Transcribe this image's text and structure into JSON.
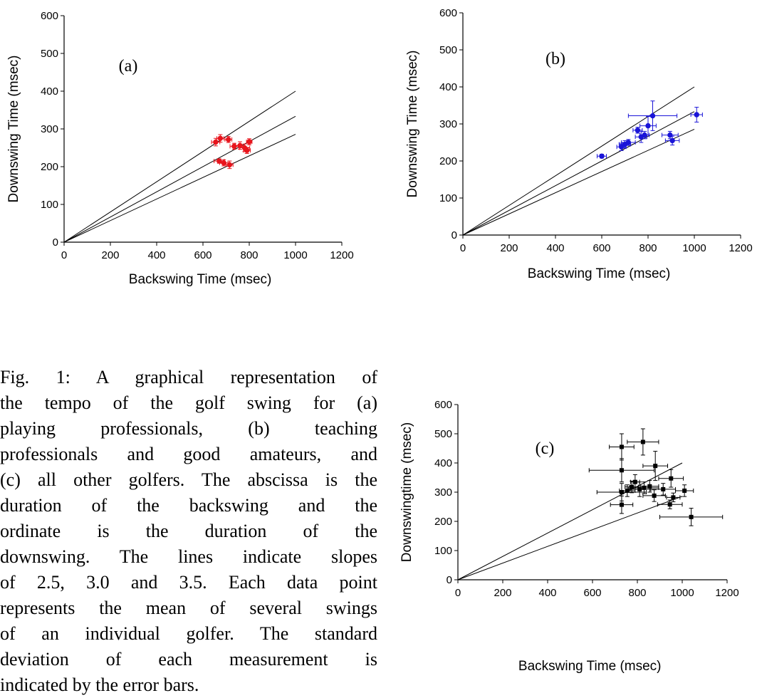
{
  "chart_data": [
    {
      "type": "scatter",
      "title": "",
      "panel_label": "(a)",
      "xlabel": "Backswing Time (msec)",
      "ylabel": "Downswing Time (msec)",
      "xlim": [
        0,
        1200
      ],
      "ylim": [
        0,
        600
      ],
      "xticks": [
        "0",
        "200",
        "400",
        "600",
        "800",
        "1000",
        "1200"
      ],
      "yticks": [
        "0",
        "100",
        "200",
        "300",
        "400",
        "500",
        "600"
      ],
      "marker": "circle",
      "color": "#e8141c",
      "reference_lines": [
        {
          "slope": 2.5,
          "x_end": 1000
        },
        {
          "slope": 3.0,
          "x_end": 1000
        },
        {
          "slope": 3.5,
          "x_end": 1000
        }
      ],
      "points": [
        {
          "x": 655,
          "y": 265,
          "xerr": 18,
          "yerr": 10
        },
        {
          "x": 675,
          "y": 275,
          "xerr": 15,
          "yerr": 10
        },
        {
          "x": 710,
          "y": 272,
          "xerr": 15,
          "yerr": 8
        },
        {
          "x": 735,
          "y": 254,
          "xerr": 18,
          "yerr": 8
        },
        {
          "x": 760,
          "y": 256,
          "xerr": 20,
          "yerr": 10
        },
        {
          "x": 780,
          "y": 250,
          "xerr": 22,
          "yerr": 10
        },
        {
          "x": 800,
          "y": 266,
          "xerr": 12,
          "yerr": 8
        },
        {
          "x": 790,
          "y": 243,
          "xerr": 15,
          "yerr": 8
        },
        {
          "x": 670,
          "y": 215,
          "xerr": 22,
          "yerr": 6
        },
        {
          "x": 690,
          "y": 210,
          "xerr": 18,
          "yerr": 8
        },
        {
          "x": 715,
          "y": 205,
          "xerr": 15,
          "yerr": 10
        }
      ]
    },
    {
      "type": "scatter",
      "title": "",
      "panel_label": "(b)",
      "xlabel": "Backswing Time (msec)",
      "ylabel": "Downswing Time (msec)",
      "xlim": [
        0,
        1200
      ],
      "ylim": [
        0,
        600
      ],
      "xticks": [
        "0",
        "200",
        "400",
        "600",
        "800",
        "1000",
        "1200"
      ],
      "yticks": [
        "0",
        "100",
        "200",
        "300",
        "400",
        "500",
        "600"
      ],
      "marker": "circle",
      "color": "#1a14d8",
      "reference_lines": [
        {
          "slope": 2.5,
          "x_end": 1000
        },
        {
          "slope": 3.0,
          "x_end": 1000
        },
        {
          "slope": 3.5,
          "x_end": 1000
        }
      ],
      "points": [
        {
          "x": 600,
          "y": 213,
          "xerr": 20,
          "yerr": 5
        },
        {
          "x": 685,
          "y": 238,
          "xerr": 20,
          "yerr": 10
        },
        {
          "x": 700,
          "y": 245,
          "xerr": 25,
          "yerr": 10
        },
        {
          "x": 715,
          "y": 250,
          "xerr": 30,
          "yerr": 8
        },
        {
          "x": 755,
          "y": 283,
          "xerr": 20,
          "yerr": 8
        },
        {
          "x": 770,
          "y": 265,
          "xerr": 25,
          "yerr": 15
        },
        {
          "x": 785,
          "y": 270,
          "xerr": 20,
          "yerr": 10
        },
        {
          "x": 800,
          "y": 295,
          "xerr": 35,
          "yerr": 25
        },
        {
          "x": 820,
          "y": 322,
          "xerr": 105,
          "yerr": 40
        },
        {
          "x": 895,
          "y": 270,
          "xerr": 35,
          "yerr": 10
        },
        {
          "x": 905,
          "y": 255,
          "xerr": 30,
          "yerr": 12
        },
        {
          "x": 1010,
          "y": 325,
          "xerr": 25,
          "yerr": 20
        }
      ]
    },
    {
      "type": "scatter",
      "title": "",
      "panel_label": "(c)",
      "xlabel": "Backswing Time (msec)",
      "ylabel": "Downswingtime (msec)",
      "xlim": [
        0,
        1200
      ],
      "ylim": [
        0,
        600
      ],
      "xticks": [
        "0",
        "200",
        "400",
        "600",
        "800",
        "1000",
        "1200"
      ],
      "yticks": [
        "0",
        "100",
        "200",
        "300",
        "400",
        "500",
        "600"
      ],
      "marker": "square",
      "color": "#000000",
      "reference_lines": [
        {
          "slope": 2.5,
          "x_end": 1000
        },
        {
          "slope": 3.5,
          "x_end": 1000
        }
      ],
      "points": [
        {
          "x": 730,
          "y": 455,
          "xerr": 55,
          "yerr": 45
        },
        {
          "x": 825,
          "y": 472,
          "xerr": 70,
          "yerr": 45
        },
        {
          "x": 730,
          "y": 375,
          "xerr": 145,
          "yerr": 40
        },
        {
          "x": 880,
          "y": 390,
          "xerr": 55,
          "yerr": 50
        },
        {
          "x": 790,
          "y": 335,
          "xerr": 20,
          "yerr": 25
        },
        {
          "x": 755,
          "y": 305,
          "xerr": 35,
          "yerr": 20
        },
        {
          "x": 730,
          "y": 300,
          "xerr": 110,
          "yerr": 30
        },
        {
          "x": 775,
          "y": 318,
          "xerr": 30,
          "yerr": 20
        },
        {
          "x": 810,
          "y": 310,
          "xerr": 50,
          "yerr": 25
        },
        {
          "x": 830,
          "y": 315,
          "xerr": 65,
          "yerr": 20
        },
        {
          "x": 855,
          "y": 320,
          "xerr": 40,
          "yerr": 20
        },
        {
          "x": 875,
          "y": 288,
          "xerr": 50,
          "yerr": 20
        },
        {
          "x": 915,
          "y": 310,
          "xerr": 55,
          "yerr": 20
        },
        {
          "x": 950,
          "y": 347,
          "xerr": 55,
          "yerr": 30
        },
        {
          "x": 960,
          "y": 282,
          "xerr": 30,
          "yerr": 15
        },
        {
          "x": 945,
          "y": 258,
          "xerr": 55,
          "yerr": 15
        },
        {
          "x": 1010,
          "y": 305,
          "xerr": 40,
          "yerr": 20
        },
        {
          "x": 730,
          "y": 257,
          "xerr": 50,
          "yerr": 30
        },
        {
          "x": 1040,
          "y": 215,
          "xerr": 140,
          "yerr": 30
        }
      ]
    }
  ],
  "caption_lines": [
    "Fig. 1:  A graphical representation of",
    "the tempo of the golf swing for (a)",
    "playing  professionals,  (b)  teaching",
    "professionals and good amateurs, and",
    "(c) all other golfers.  The abscissa is the",
    "duration  of  the  backswing  and  the",
    "ordinate  is  the  duration  of  the",
    "downswing.  The lines indicate slopes",
    "of 2.5, 3.0 and 3.5.  Each data point",
    "represents the mean of several swings",
    "of an individual golfer.  The standard",
    "deviation  of  each  measurement  is",
    "indicated by the error bars."
  ]
}
